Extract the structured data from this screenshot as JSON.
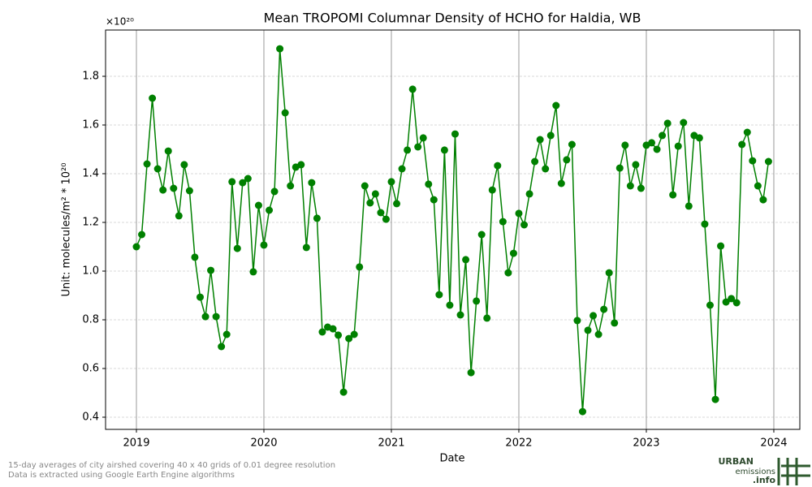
{
  "chart_data": {
    "type": "line",
    "title": "Mean TROPOMI Columnar Density of HCHO for Haldia, WB",
    "offset_label": "×10²⁰",
    "xlabel": "Date",
    "ylabel": "Unit: molecules/m² * 10²⁰",
    "footnote": [
      "15-day averages of city airshed covering 40 x 40 grids of 0.01 degree resolution",
      "Data is extracted using Google Earth Engine algorithms"
    ],
    "logo": [
      "URBAN",
      "emissions",
      ".info"
    ],
    "xlim": [
      2018.758,
      2024.204
    ],
    "ylim": [
      0.35,
      1.99
    ],
    "xticks": [
      2019,
      2020,
      2021,
      2022,
      2023,
      2024
    ],
    "yticks": [
      {
        "value": 0.4,
        "label": "0.4"
      },
      {
        "value": 0.6,
        "label": "0.6"
      },
      {
        "value": 0.8,
        "label": "0.8"
      },
      {
        "value": 1.0,
        "label": "1.0"
      },
      {
        "value": 1.2,
        "label": "1.2"
      },
      {
        "value": 1.4,
        "label": "1.4"
      },
      {
        "value": 1.6,
        "label": "1.6"
      },
      {
        "value": 1.8,
        "label": "1.8"
      }
    ],
    "grid": true,
    "year_lines": true,
    "series": [
      {
        "color": "#008000",
        "x": [
          2019,
          2019.0417,
          2019.0833,
          2019.125,
          2019.1667,
          2019.2083,
          2019.25,
          2019.2917,
          2019.3333,
          2019.375,
          2019.4167,
          2019.4583,
          2019.5,
          2019.5417,
          2019.5833,
          2019.625,
          2019.6667,
          2019.7083,
          2019.75,
          2019.7917,
          2019.8333,
          2019.875,
          2019.9167,
          2019.9583,
          2020,
          2020.0417,
          2020.0833,
          2020.125,
          2020.1667,
          2020.2083,
          2020.25,
          2020.2917,
          2020.3333,
          2020.375,
          2020.4167,
          2020.4583,
          2020.5,
          2020.5417,
          2020.5833,
          2020.625,
          2020.6667,
          2020.7083,
          2020.75,
          2020.7917,
          2020.8333,
          2020.875,
          2020.9167,
          2020.9583,
          2021,
          2021.0417,
          2021.0833,
          2021.125,
          2021.1667,
          2021.2083,
          2021.25,
          2021.2917,
          2021.3333,
          2021.375,
          2021.4167,
          2021.4583,
          2021.5,
          2021.5417,
          2021.5833,
          2021.625,
          2021.6667,
          2021.7083,
          2021.75,
          2021.7917,
          2021.8333,
          2021.875,
          2021.9167,
          2021.9583,
          2022,
          2022.0417,
          2022.0833,
          2022.125,
          2022.1667,
          2022.2083,
          2022.25,
          2022.2917,
          2022.3333,
          2022.375,
          2022.4167,
          2022.4583,
          2022.5,
          2022.5417,
          2022.5833,
          2022.625,
          2022.6667,
          2022.7083,
          2022.75,
          2022.7917,
          2022.8333,
          2022.875,
          2022.9167,
          2022.9583,
          2023,
          2023.0417,
          2023.0833,
          2023.125,
          2023.1667,
          2023.2083,
          2023.25,
          2023.2917,
          2023.3333,
          2023.375,
          2023.4167,
          2023.4583,
          2023.5,
          2023.5417,
          2023.5833,
          2023.625,
          2023.6667,
          2023.7083,
          2023.75,
          2023.7917,
          2023.8333,
          2023.875,
          2023.9167,
          2023.9583
        ],
        "values": [
          1.1,
          1.15,
          1.44,
          1.71,
          1.42,
          1.333,
          1.493,
          1.34,
          1.227,
          1.437,
          1.33,
          1.057,
          0.893,
          0.813,
          1.003,
          0.813,
          0.69,
          0.74,
          1.367,
          1.093,
          1.363,
          1.38,
          0.997,
          1.27,
          1.107,
          1.25,
          1.327,
          1.913,
          1.65,
          1.35,
          1.427,
          1.437,
          1.097,
          1.363,
          1.217,
          0.75,
          0.77,
          0.763,
          0.737,
          0.503,
          0.723,
          0.74,
          1.017,
          1.35,
          1.28,
          1.317,
          1.24,
          1.213,
          1.367,
          1.277,
          1.42,
          1.497,
          1.747,
          1.51,
          1.547,
          1.357,
          1.293,
          0.903,
          1.497,
          0.86,
          1.563,
          0.82,
          1.047,
          0.583,
          0.877,
          1.15,
          0.807,
          1.333,
          1.433,
          1.203,
          0.993,
          1.073,
          1.237,
          1.19,
          1.317,
          1.45,
          1.54,
          1.42,
          1.557,
          1.68,
          1.36,
          1.457,
          1.52,
          0.797,
          0.423,
          0.757,
          0.817,
          0.74,
          0.843,
          0.993,
          0.787,
          1.423,
          1.517,
          1.35,
          1.437,
          1.34,
          1.517,
          1.527,
          1.5,
          1.557,
          1.607,
          1.313,
          1.513,
          1.61,
          1.267,
          1.557,
          1.547,
          1.193,
          0.86,
          0.473,
          1.103,
          0.873,
          0.887,
          0.87,
          1.52,
          1.57,
          1.453,
          1.35,
          1.293,
          1.45
        ]
      }
    ]
  }
}
